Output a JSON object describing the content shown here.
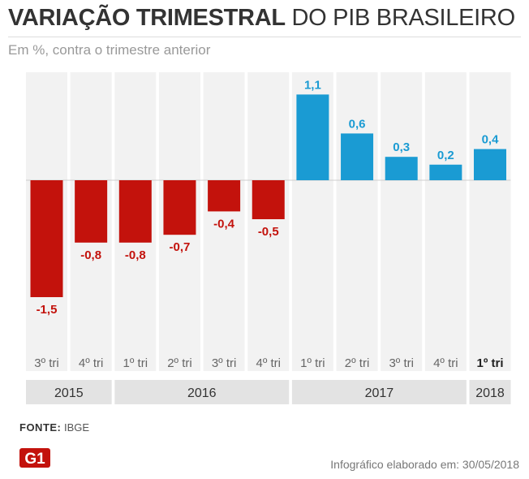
{
  "header": {
    "title_bold": "VARIAÇÃO TRIMESTRAL",
    "title_light": "DO PIB BRASILEIRO",
    "subtitle": "Em %, contra o trimestre anterior"
  },
  "chart_data": {
    "type": "bar",
    "categories": [
      "3º tri",
      "4º tri",
      "1º tri",
      "2º tri",
      "3º tri",
      "4º tri",
      "1º tri",
      "2º tri",
      "3º tri",
      "4º tri",
      "1º tri"
    ],
    "years": [
      "2015",
      "2015",
      "2016",
      "2016",
      "2016",
      "2016",
      "2017",
      "2017",
      "2017",
      "2017",
      "2018"
    ],
    "values": [
      -1.5,
      -0.8,
      -0.8,
      -0.7,
      -0.4,
      -0.5,
      1.1,
      0.6,
      0.3,
      0.2,
      0.4
    ],
    "value_labels": [
      "-1,5",
      "-0,8",
      "-0,8",
      "-0,7",
      "-0,4",
      "-0,5",
      "1,1",
      "0,6",
      "0,3",
      "0,2",
      "0,4"
    ],
    "year_groups": [
      {
        "label": "2015",
        "start": 0,
        "end": 1
      },
      {
        "label": "2016",
        "start": 2,
        "end": 5
      },
      {
        "label": "2017",
        "start": 6,
        "end": 9
      },
      {
        "label": "2018",
        "start": 10,
        "end": 10
      }
    ],
    "highlight_index": 10,
    "colors": {
      "positive": "#1a9bd3",
      "negative": "#c3120c",
      "column_bg": "#f2f2f2",
      "year_bg": "#e3e3e3",
      "zero_line": "#cfcfcf"
    }
  },
  "footer": {
    "source_label": "FONTE:",
    "source_value": "IBGE",
    "logo_text": "G1",
    "credit": "Infográfico elaborado em: 30/05/2018"
  }
}
